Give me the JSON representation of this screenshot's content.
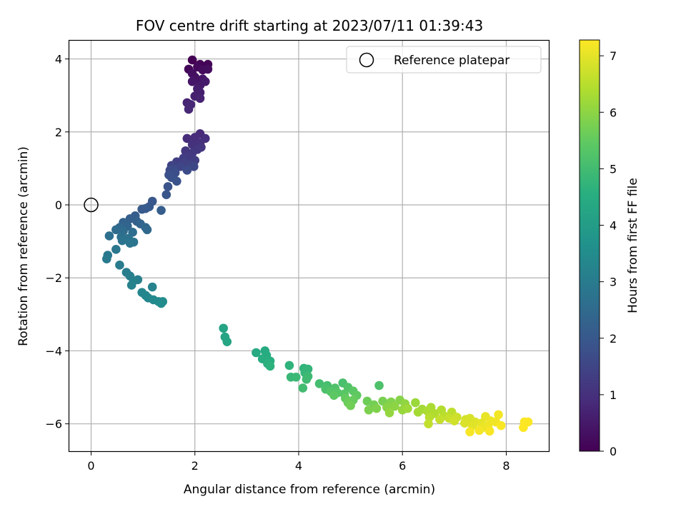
{
  "chart_data": {
    "type": "scatter",
    "title": "FOV centre drift starting at 2023/07/11 01:39:43",
    "xlabel": "Angular distance from reference (arcmin)",
    "ylabel": "Rotation from reference (arcmin)",
    "xlim": [
      -0.42,
      8.82
    ],
    "ylim": [
      -6.75,
      4.5
    ],
    "xticks": [
      0,
      2,
      4,
      6,
      8
    ],
    "yticks": [
      -6,
      -4,
      -2,
      0,
      2,
      4
    ],
    "grid": true,
    "legend": {
      "position": "top-right",
      "entries": [
        "Reference platepar"
      ]
    },
    "reference_point": {
      "x": 0,
      "y": 0,
      "label": "Reference platepar"
    },
    "colorbar": {
      "label": "Hours from first FF file",
      "colormap": "viridis",
      "range": [
        0,
        7.28
      ],
      "ticks": [
        0,
        1,
        2,
        3,
        4,
        5,
        6,
        7
      ]
    },
    "points": [
      {
        "x": 1.95,
        "y": 3.97,
        "c": 0.0
      },
      {
        "x": 2.1,
        "y": 3.85,
        "c": 0.04
      },
      {
        "x": 2.25,
        "y": 3.85,
        "c": 0.08
      },
      {
        "x": 1.88,
        "y": 3.72,
        "c": 0.12
      },
      {
        "x": 2.05,
        "y": 3.78,
        "c": 0.16
      },
      {
        "x": 2.15,
        "y": 3.7,
        "c": 0.2
      },
      {
        "x": 2.25,
        "y": 3.72,
        "c": 0.24
      },
      {
        "x": 1.95,
        "y": 3.6,
        "c": 0.28
      },
      {
        "x": 2.0,
        "y": 3.5,
        "c": 0.32
      },
      {
        "x": 2.05,
        "y": 3.42,
        "c": 0.36
      },
      {
        "x": 2.15,
        "y": 3.45,
        "c": 0.4
      },
      {
        "x": 1.95,
        "y": 3.38,
        "c": 0.44
      },
      {
        "x": 2.1,
        "y": 3.28,
        "c": 0.48
      },
      {
        "x": 2.2,
        "y": 3.38,
        "c": 0.52
      },
      {
        "x": 2.05,
        "y": 3.18,
        "c": 0.56
      },
      {
        "x": 2.1,
        "y": 3.08,
        "c": 0.6
      },
      {
        "x": 2.0,
        "y": 2.98,
        "c": 0.64
      },
      {
        "x": 2.1,
        "y": 2.92,
        "c": 0.68
      },
      {
        "x": 1.85,
        "y": 2.8,
        "c": 0.72
      },
      {
        "x": 1.92,
        "y": 2.75,
        "c": 0.76
      },
      {
        "x": 1.88,
        "y": 2.62,
        "c": 0.8
      },
      {
        "x": 2.1,
        "y": 1.95,
        "c": 0.84
      },
      {
        "x": 1.85,
        "y": 1.82,
        "c": 0.88
      },
      {
        "x": 2.0,
        "y": 1.85,
        "c": 0.92
      },
      {
        "x": 2.2,
        "y": 1.82,
        "c": 0.96
      },
      {
        "x": 2.1,
        "y": 1.7,
        "c": 1.0
      },
      {
        "x": 1.95,
        "y": 1.65,
        "c": 1.04
      },
      {
        "x": 2.12,
        "y": 1.58,
        "c": 1.08
      },
      {
        "x": 2.05,
        "y": 1.52,
        "c": 1.12
      },
      {
        "x": 1.82,
        "y": 1.48,
        "c": 1.16
      },
      {
        "x": 1.95,
        "y": 1.42,
        "c": 1.2
      },
      {
        "x": 1.9,
        "y": 1.32,
        "c": 1.24
      },
      {
        "x": 1.78,
        "y": 1.28,
        "c": 1.28
      },
      {
        "x": 2.0,
        "y": 1.22,
        "c": 1.32
      },
      {
        "x": 1.65,
        "y": 1.18,
        "c": 1.36
      },
      {
        "x": 1.8,
        "y": 1.15,
        "c": 1.4
      },
      {
        "x": 1.9,
        "y": 1.1,
        "c": 1.44
      },
      {
        "x": 1.55,
        "y": 1.08,
        "c": 1.48
      },
      {
        "x": 1.72,
        "y": 1.05,
        "c": 1.52
      },
      {
        "x": 1.98,
        "y": 1.05,
        "c": 1.56
      },
      {
        "x": 1.6,
        "y": 0.98,
        "c": 1.6
      },
      {
        "x": 1.52,
        "y": 0.95,
        "c": 1.64
      },
      {
        "x": 1.85,
        "y": 0.95,
        "c": 1.68
      },
      {
        "x": 1.62,
        "y": 0.88,
        "c": 1.72
      },
      {
        "x": 1.5,
        "y": 0.82,
        "c": 1.76
      },
      {
        "x": 1.55,
        "y": 0.75,
        "c": 1.8
      },
      {
        "x": 1.65,
        "y": 0.65,
        "c": 1.84
      },
      {
        "x": 1.48,
        "y": 0.5,
        "c": 1.88
      },
      {
        "x": 1.45,
        "y": 0.28,
        "c": 1.92
      },
      {
        "x": 1.18,
        "y": 0.1,
        "c": 1.96
      },
      {
        "x": 1.12,
        "y": -0.05,
        "c": 2.0
      },
      {
        "x": 0.98,
        "y": -0.12,
        "c": 2.04
      },
      {
        "x": 1.05,
        "y": -0.1,
        "c": 2.08
      },
      {
        "x": 1.35,
        "y": -0.15,
        "c": 2.12
      },
      {
        "x": 0.85,
        "y": -0.3,
        "c": 2.16
      },
      {
        "x": 0.75,
        "y": -0.38,
        "c": 2.2
      },
      {
        "x": 0.88,
        "y": -0.45,
        "c": 2.24
      },
      {
        "x": 0.62,
        "y": -0.48,
        "c": 2.28
      },
      {
        "x": 0.95,
        "y": -0.52,
        "c": 2.32
      },
      {
        "x": 0.7,
        "y": -0.58,
        "c": 2.36
      },
      {
        "x": 1.05,
        "y": -0.62,
        "c": 2.4
      },
      {
        "x": 0.55,
        "y": -0.62,
        "c": 2.44
      },
      {
        "x": 1.08,
        "y": -0.68,
        "c": 2.48
      },
      {
        "x": 0.48,
        "y": -0.68,
        "c": 2.52
      },
      {
        "x": 0.62,
        "y": -0.72,
        "c": 2.56
      },
      {
        "x": 0.8,
        "y": -0.75,
        "c": 2.6
      },
      {
        "x": 0.35,
        "y": -0.85,
        "c": 2.64
      },
      {
        "x": 0.58,
        "y": -0.88,
        "c": 2.68
      },
      {
        "x": 0.72,
        "y": -0.92,
        "c": 2.72
      },
      {
        "x": 0.6,
        "y": -0.98,
        "c": 2.76
      },
      {
        "x": 0.82,
        "y": -1.02,
        "c": 2.8
      },
      {
        "x": 0.75,
        "y": -1.05,
        "c": 2.84
      },
      {
        "x": 0.48,
        "y": -1.22,
        "c": 2.88
      },
      {
        "x": 0.32,
        "y": -1.38,
        "c": 2.92
      },
      {
        "x": 0.3,
        "y": -1.48,
        "c": 2.96
      },
      {
        "x": 0.55,
        "y": -1.65,
        "c": 3.0
      },
      {
        "x": 0.68,
        "y": -1.85,
        "c": 3.04
      },
      {
        "x": 0.75,
        "y": -1.95,
        "c": 3.08
      },
      {
        "x": 0.9,
        "y": -2.05,
        "c": 3.12
      },
      {
        "x": 0.82,
        "y": -2.08,
        "c": 3.16
      },
      {
        "x": 0.78,
        "y": -2.2,
        "c": 3.2
      },
      {
        "x": 1.18,
        "y": -2.25,
        "c": 3.24
      },
      {
        "x": 0.98,
        "y": -2.4,
        "c": 3.28
      },
      {
        "x": 1.05,
        "y": -2.48,
        "c": 3.32
      },
      {
        "x": 1.1,
        "y": -2.55,
        "c": 3.36
      },
      {
        "x": 1.2,
        "y": -2.6,
        "c": 3.4
      },
      {
        "x": 1.3,
        "y": -2.65,
        "c": 3.44
      },
      {
        "x": 1.38,
        "y": -2.65,
        "c": 3.48
      },
      {
        "x": 1.35,
        "y": -2.7,
        "c": 3.52
      },
      {
        "x": 2.55,
        "y": -3.38,
        "c": 4.2
      },
      {
        "x": 2.58,
        "y": -3.62,
        "c": 4.24
      },
      {
        "x": 2.62,
        "y": -3.75,
        "c": 4.28
      },
      {
        "x": 3.18,
        "y": -4.05,
        "c": 4.4
      },
      {
        "x": 3.35,
        "y": -4.0,
        "c": 4.44
      },
      {
        "x": 3.38,
        "y": -4.12,
        "c": 4.48
      },
      {
        "x": 3.3,
        "y": -4.22,
        "c": 4.52
      },
      {
        "x": 3.45,
        "y": -4.28,
        "c": 4.56
      },
      {
        "x": 3.4,
        "y": -4.35,
        "c": 4.6
      },
      {
        "x": 3.45,
        "y": -4.42,
        "c": 4.64
      },
      {
        "x": 3.82,
        "y": -4.4,
        "c": 4.68
      },
      {
        "x": 4.1,
        "y": -4.48,
        "c": 4.72
      },
      {
        "x": 4.18,
        "y": -4.5,
        "c": 4.76
      },
      {
        "x": 4.12,
        "y": -4.6,
        "c": 4.8
      },
      {
        "x": 3.85,
        "y": -4.72,
        "c": 4.84
      },
      {
        "x": 3.95,
        "y": -4.72,
        "c": 4.88
      },
      {
        "x": 4.18,
        "y": -4.7,
        "c": 4.92
      },
      {
        "x": 4.15,
        "y": -4.78,
        "c": 4.96
      },
      {
        "x": 4.08,
        "y": -5.02,
        "c": 5.0
      },
      {
        "x": 4.4,
        "y": -4.9,
        "c": 5.04
      },
      {
        "x": 4.55,
        "y": -4.95,
        "c": 5.08
      },
      {
        "x": 4.85,
        "y": -4.88,
        "c": 5.12
      },
      {
        "x": 4.52,
        "y": -5.05,
        "c": 5.16
      },
      {
        "x": 4.7,
        "y": -5.02,
        "c": 5.2
      },
      {
        "x": 4.95,
        "y": -5.0,
        "c": 5.24
      },
      {
        "x": 4.62,
        "y": -5.12,
        "c": 5.28
      },
      {
        "x": 4.75,
        "y": -5.15,
        "c": 5.32
      },
      {
        "x": 4.88,
        "y": -5.18,
        "c": 5.36
      },
      {
        "x": 5.05,
        "y": -5.1,
        "c": 5.4
      },
      {
        "x": 4.68,
        "y": -5.22,
        "c": 5.44
      },
      {
        "x": 5.12,
        "y": -5.22,
        "c": 5.48
      },
      {
        "x": 4.9,
        "y": -5.3,
        "c": 5.52
      },
      {
        "x": 5.05,
        "y": -5.35,
        "c": 5.56
      },
      {
        "x": 4.95,
        "y": -5.42,
        "c": 5.6
      },
      {
        "x": 5.55,
        "y": -4.95,
        "c": 5.2
      },
      {
        "x": 5.32,
        "y": -5.38,
        "c": 5.64
      },
      {
        "x": 5.0,
        "y": -5.5,
        "c": 5.68
      },
      {
        "x": 5.45,
        "y": -5.48,
        "c": 5.72
      },
      {
        "x": 5.62,
        "y": -5.38,
        "c": 5.76
      },
      {
        "x": 5.35,
        "y": -5.62,
        "c": 5.8
      },
      {
        "x": 5.5,
        "y": -5.58,
        "c": 5.84
      },
      {
        "x": 5.78,
        "y": -5.4,
        "c": 5.88
      },
      {
        "x": 5.95,
        "y": -5.35,
        "c": 5.92
      },
      {
        "x": 5.7,
        "y": -5.55,
        "c": 5.96
      },
      {
        "x": 5.85,
        "y": -5.52,
        "c": 6.0
      },
      {
        "x": 6.05,
        "y": -5.45,
        "c": 6.04
      },
      {
        "x": 5.75,
        "y": -5.7,
        "c": 6.08
      },
      {
        "x": 6.0,
        "y": -5.62,
        "c": 6.12
      },
      {
        "x": 6.25,
        "y": -5.42,
        "c": 6.16
      },
      {
        "x": 6.1,
        "y": -5.58,
        "c": 6.2
      },
      {
        "x": 6.38,
        "y": -5.6,
        "c": 6.24
      },
      {
        "x": 6.3,
        "y": -5.68,
        "c": 6.28
      },
      {
        "x": 6.55,
        "y": -5.55,
        "c": 6.32
      },
      {
        "x": 6.48,
        "y": -5.65,
        "c": 6.36
      },
      {
        "x": 6.62,
        "y": -5.72,
        "c": 6.4
      },
      {
        "x": 6.75,
        "y": -5.62,
        "c": 6.44
      },
      {
        "x": 6.52,
        "y": -5.82,
        "c": 6.48
      },
      {
        "x": 6.8,
        "y": -5.78,
        "c": 6.52
      },
      {
        "x": 6.95,
        "y": -5.68,
        "c": 6.56
      },
      {
        "x": 6.5,
        "y": -6.0,
        "c": 6.6
      },
      {
        "x": 6.72,
        "y": -5.88,
        "c": 6.64
      },
      {
        "x": 6.9,
        "y": -5.85,
        "c": 6.68
      },
      {
        "x": 7.05,
        "y": -5.82,
        "c": 6.72
      },
      {
        "x": 7.0,
        "y": -5.92,
        "c": 6.76
      },
      {
        "x": 7.22,
        "y": -5.88,
        "c": 6.8
      },
      {
        "x": 7.3,
        "y": -5.85,
        "c": 6.84
      },
      {
        "x": 7.2,
        "y": -5.98,
        "c": 6.88
      },
      {
        "x": 7.4,
        "y": -5.95,
        "c": 6.92
      },
      {
        "x": 7.35,
        "y": -6.05,
        "c": 6.96
      },
      {
        "x": 7.52,
        "y": -5.98,
        "c": 7.0
      },
      {
        "x": 7.6,
        "y": -5.8,
        "c": 7.04
      },
      {
        "x": 7.55,
        "y": -6.1,
        "c": 7.08
      },
      {
        "x": 7.7,
        "y": -5.92,
        "c": 7.1
      },
      {
        "x": 7.65,
        "y": -6.05,
        "c": 7.12
      },
      {
        "x": 7.8,
        "y": -5.95,
        "c": 7.14
      },
      {
        "x": 7.85,
        "y": -5.75,
        "c": 7.16
      },
      {
        "x": 7.48,
        "y": -6.18,
        "c": 7.18
      },
      {
        "x": 7.3,
        "y": -6.22,
        "c": 7.2
      },
      {
        "x": 7.68,
        "y": -6.2,
        "c": 7.22
      },
      {
        "x": 7.9,
        "y": -6.05,
        "c": 7.24
      },
      {
        "x": 8.35,
        "y": -5.95,
        "c": 7.26
      },
      {
        "x": 8.42,
        "y": -5.95,
        "c": 7.27
      },
      {
        "x": 8.33,
        "y": -6.1,
        "c": 7.28
      }
    ]
  }
}
